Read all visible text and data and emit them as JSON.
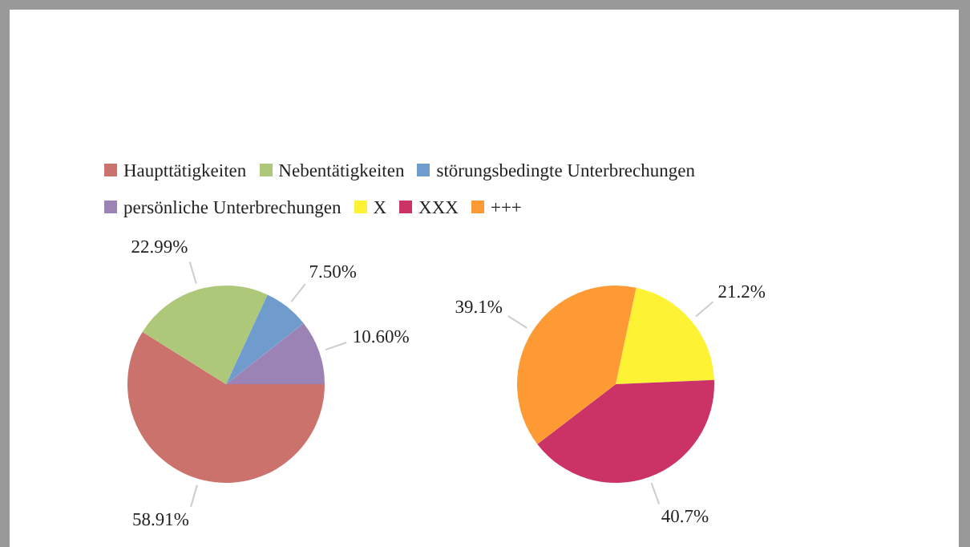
{
  "chart_data": [
    {
      "type": "pie",
      "categories": [
        "Haupttätigkeiten",
        "Nebentätigkeiten",
        "störungsbedingte Unterbrechungen",
        "persönliche Unterbrechungen"
      ],
      "values": [
        58.91,
        22.99,
        7.5,
        10.6
      ],
      "colors": [
        "#cb726d",
        "#adc879",
        "#6f9bcd",
        "#9b83b5"
      ],
      "value_labels": [
        "58.91%",
        "22.99%",
        "7.50%",
        "10.60%"
      ],
      "legend": "top"
    },
    {
      "type": "pie",
      "categories": [
        "X",
        "XXX",
        "+++"
      ],
      "values": [
        21.2,
        40.7,
        39.1
      ],
      "colors": [
        "#fef234",
        "#cb3366",
        "#fd9a33"
      ],
      "value_labels": [
        "21.2%",
        "40.7%",
        "39.1%"
      ],
      "legend": "top"
    }
  ]
}
